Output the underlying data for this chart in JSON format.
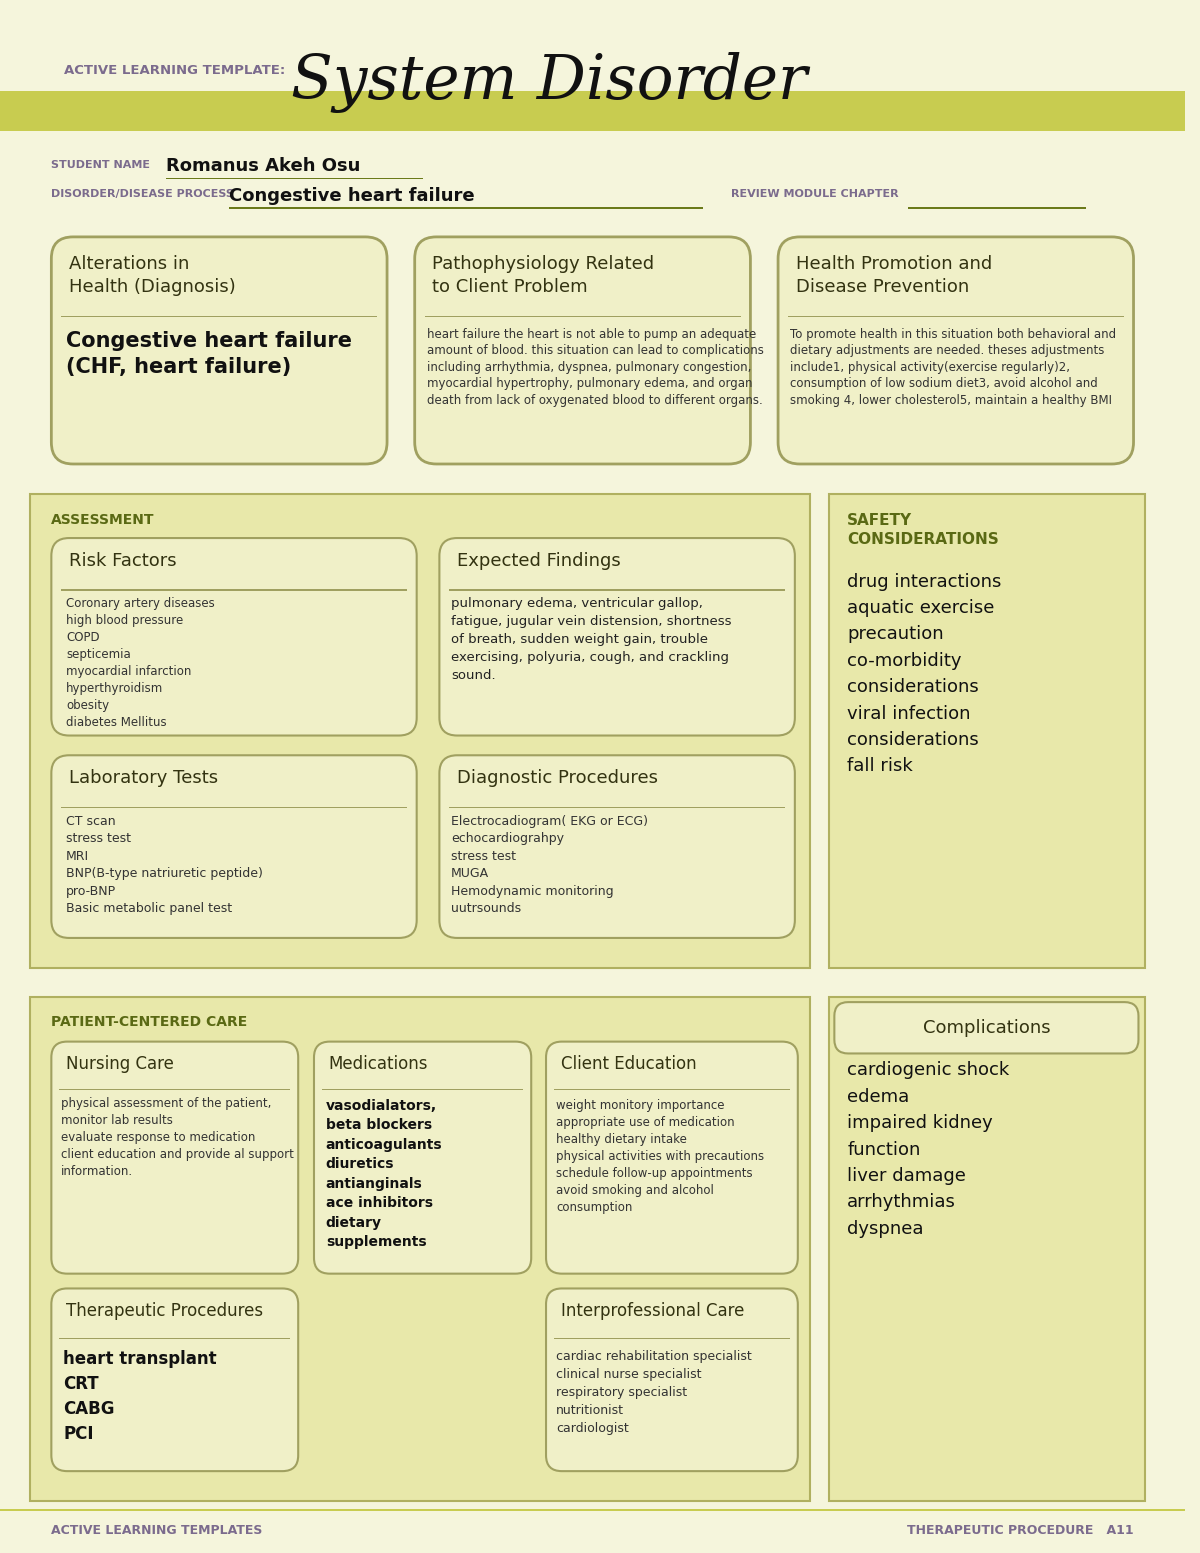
{
  "bg_color": "#f5f5dc",
  "header_bg": "#d4d97a",
  "section_bg": "#e8e8b0",
  "box_bg": "#f0f0c8",
  "box_border": "#a0a060",
  "title_template": "ACTIVE LEARNING TEMPLATE:",
  "title_main": "System Disorder",
  "student_label": "STUDENT NAME",
  "student_name": "Romanus Akeh Osu",
  "disorder_label": "DISORDER/DISEASE PROCESS",
  "disorder_name": "Congestive heart failure",
  "review_label": "REVIEW MODULE CHAPTER",
  "box1_title": "Alterations in\nHealth (Diagnosis)",
  "box1_content": "Congestive heart failure\n(CHF, heart failure)",
  "box2_title": "Pathophysiology Related\nto Client Problem",
  "box2_content": "heart failure the heart is not able to pump an adequate\namount of blood. this situation can lead to complications\nincluding arrhythmia, dyspnea, pulmonary congestion,\nmyocardial hypertrophy, pulmonary edema, and organ\ndeath from lack of oxygenated blood to different organs.",
  "box3_title": "Health Promotion and\nDisease Prevention",
  "box3_content": "To promote health in this situation both behavioral and\ndietary adjustments are needed. theses adjustments\ninclude1, physical activity(exercise regularly)2,\nconsumption of low sodium diet3, avoid alcohol and\nsmoking 4, lower cholesterol5, maintain a healthy BMI",
  "assess_label": "ASSESSMENT",
  "safety_label": "SAFETY\nCONSIDERATIONS",
  "risk_title": "Risk Factors",
  "risk_content": "Coronary artery diseases\nhigh blood pressure\nCOPD\nsepticemia\nmyocardial infarction\nhyperthyroidism\nobesity\ndiabetes Mellitus",
  "expected_title": "Expected Findings",
  "expected_content": "pulmonary edema, ventricular gallop,\nfatigue, jugular vein distension, shortness\nof breath, sudden weight gain, trouble\nexercising, polyuria, cough, and crackling\nsound.",
  "safety_content": "drug interactions\naquatic exercise\nprecaution\nco-morbidity\nconsiderations\nviral infection\nconsiderations\nfall risk",
  "lab_title": "Laboratory Tests",
  "lab_content": "CT scan\nstress test\nMRI\nBNP(B-type natriuretic peptide)\npro-BNP\nBasic metabolic panel test",
  "diag_title": "Diagnostic Procedures",
  "diag_content": "Electrocadiogram( EKG or ECG)\nechocardiograhpy\nstress test\nMUGA\nHemodynamic monitoring\nuutrsounds",
  "patient_label": "PATIENT-CENTERED CARE",
  "complications_title": "Complications",
  "complications_content": "cardiogenic shock\nedema\nimpaired kidney\nfunction\nliver damage\narrhythmias\ndyspnea",
  "nursing_title": "Nursing Care",
  "nursing_content": "physical assessment of the patient,\nmonitor lab results\nevaluate response to medication\nclient education and provide al support\ninformation.",
  "meds_title": "Medications",
  "meds_content": "vasodialators,\nbeta blockers\nanticoagulants\ndiuretics\nantianginals\nace inhibitors\ndietary\nsupplements",
  "client_ed_title": "Client Education",
  "client_ed_content": "weight monitory importance\nappropriate use of medication\nhealthy dietary intake\nphysical activities with precautions\nschedule follow-up appointments\navoid smoking and alcohol\nconsumption",
  "therapeutic_title": "Therapeutic Procedures",
  "therapeutic_content": "heart transplant\nCRT\nCABG\nPCI",
  "interpro_title": "Interprofessional Care",
  "interpro_content": "cardiac rehabilitation specialist\nclinical nurse specialist\nrespiratory specialist\nnutritionist\ncardiologist",
  "footer_left": "ACTIVE LEARNING TEMPLATES",
  "footer_right": "THERAPEUTIC PROCEDURE   A11",
  "purple_color": "#7b6b8d",
  "olive_color": "#6b7a1a",
  "dark_olive": "#5a6914",
  "text_dark": "#222222",
  "text_medium": "#444444"
}
